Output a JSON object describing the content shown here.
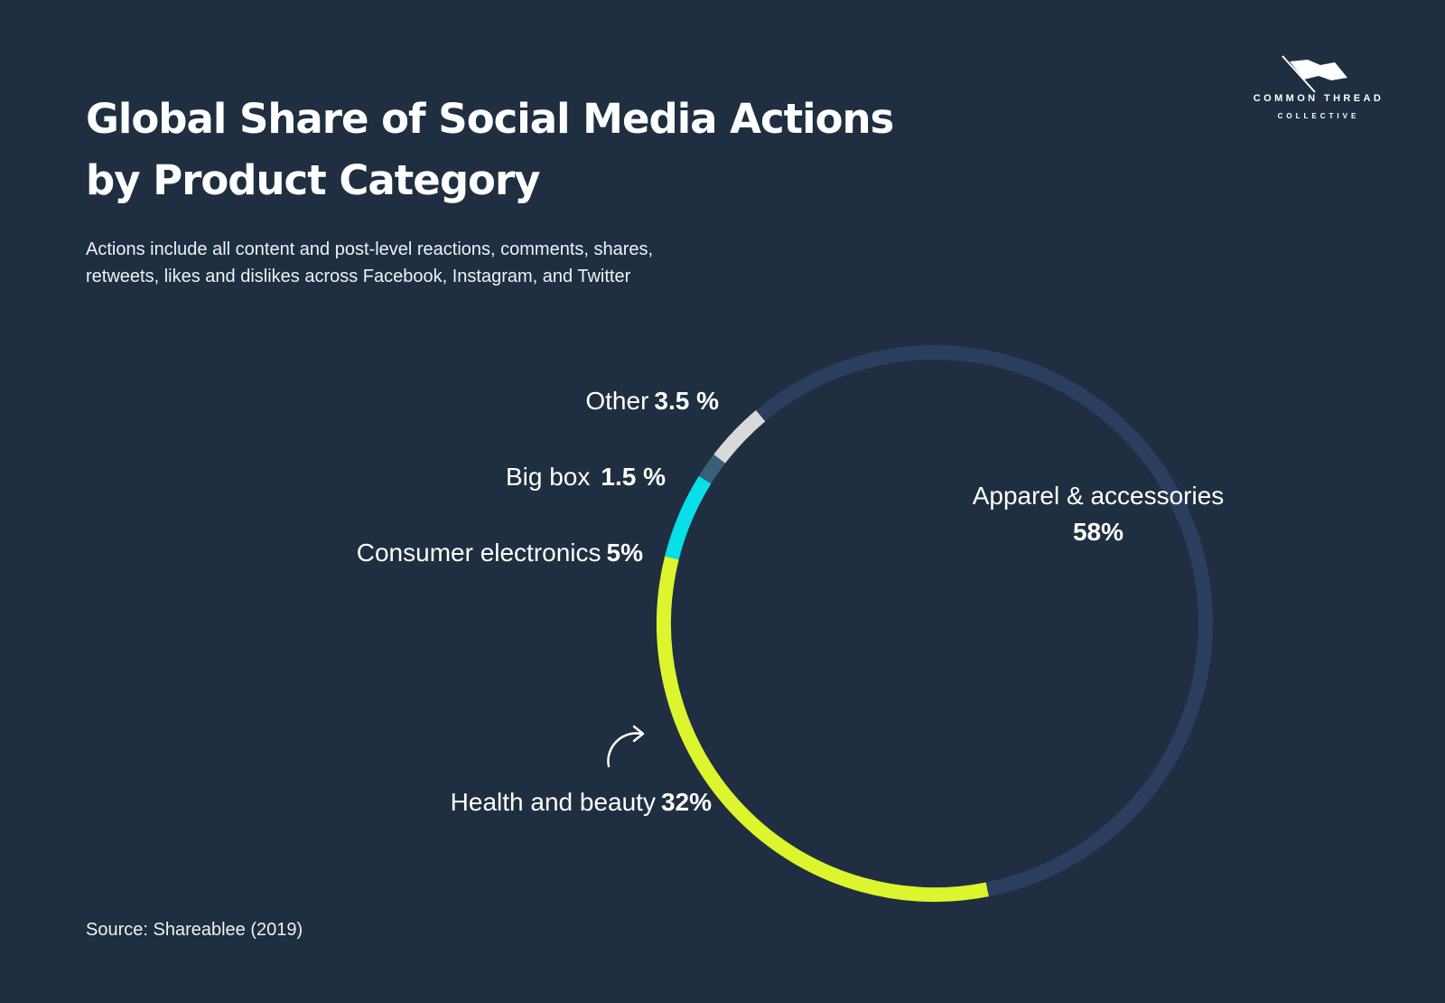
{
  "title_line1": "Global Share of Social Media Actions",
  "title_line2": "by Product Category",
  "subtitle_line1": "Actions include all content and post-level reactions, comments, shares,",
  "subtitle_line2": "retweets, likes and dislikes across Facebook, Instagram, and Twitter",
  "source": "Source: Shareablee (2019)",
  "logo": {
    "name": "COMMON THREAD",
    "sub": "COLLECTIVE",
    "icon": "flag-needle-icon"
  },
  "colors": {
    "background": "#1f2f41",
    "apparel": "#2b3e60",
    "health": "#dcf52e",
    "electronics": "#07dfe8",
    "bigbox": "#3a5f78",
    "other": "#d9d9d9"
  },
  "chart_data": {
    "type": "pie",
    "style": "donut-ring",
    "title": "Global Share of Social Media Actions by Product Category",
    "unit": "%",
    "slices": [
      {
        "key": "apparel",
        "label": "Apparel & accessories",
        "value": 58,
        "display": "58%"
      },
      {
        "key": "health",
        "label": "Health and beauty",
        "value": 32,
        "display": "32%"
      },
      {
        "key": "electronics",
        "label": "Consumer electronics",
        "value": 5,
        "display": "5%"
      },
      {
        "key": "bigbox",
        "label": "Big box",
        "value": 1.5,
        "display": "1.5 %"
      },
      {
        "key": "other",
        "label": "Other",
        "value": 3.5,
        "display": "3.5 %"
      }
    ]
  }
}
